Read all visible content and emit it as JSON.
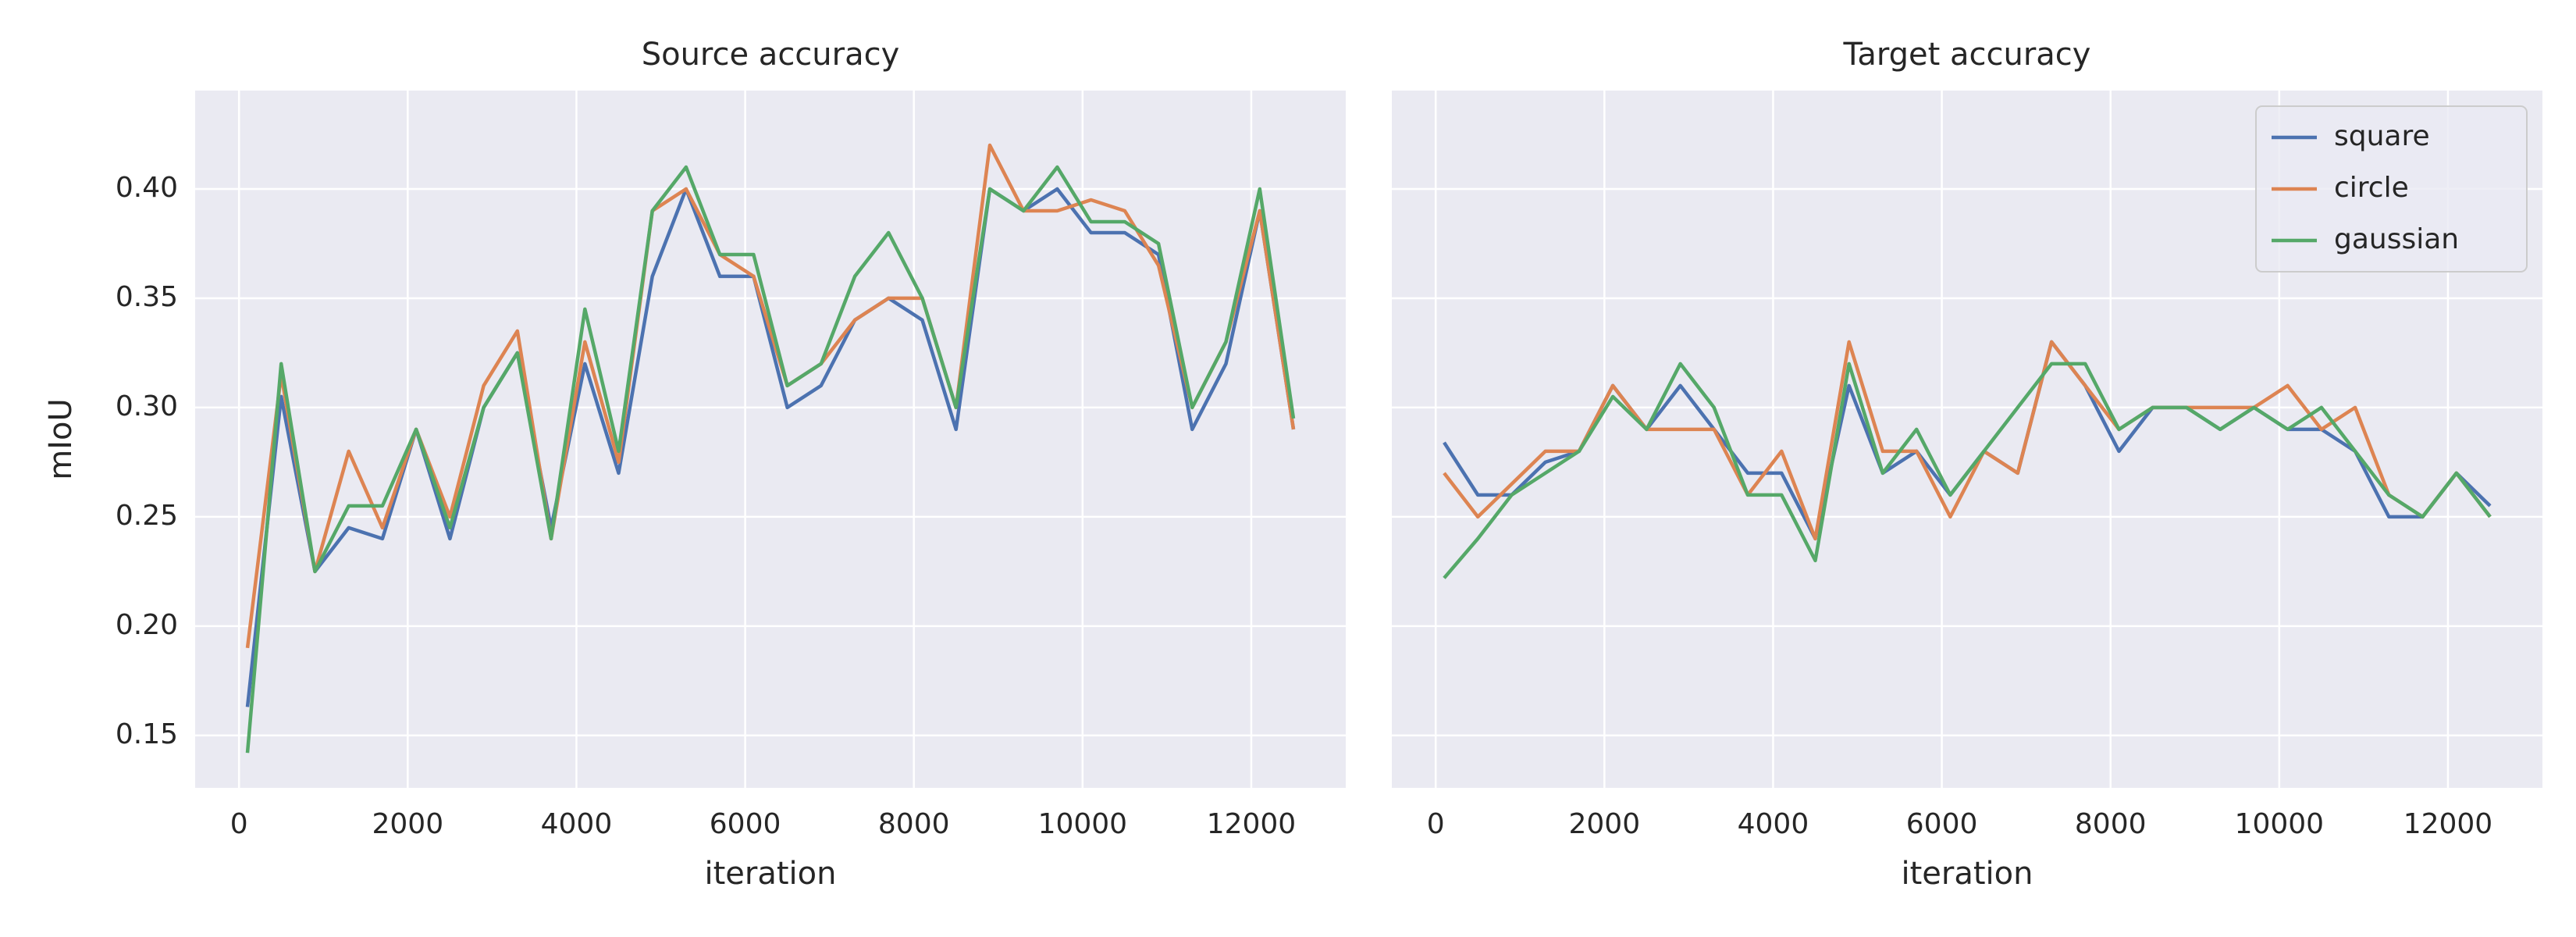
{
  "chart_data": [
    {
      "type": "line",
      "title": "Source accuracy",
      "xlabel": "iteration",
      "ylabel": "mIoU",
      "x": [
        100,
        500,
        900,
        1300,
        1700,
        2100,
        2500,
        2900,
        3300,
        3700,
        4100,
        4500,
        4900,
        5300,
        5700,
        6100,
        6500,
        6900,
        7300,
        7700,
        8100,
        8500,
        8900,
        9300,
        9700,
        10100,
        10500,
        10900,
        11300,
        11700,
        12100,
        12500
      ],
      "series": [
        {
          "name": "square",
          "color": "#4c72b0",
          "values": [
            0.163,
            0.305,
            0.225,
            0.245,
            0.24,
            0.29,
            0.24,
            0.3,
            0.325,
            0.245,
            0.32,
            0.27,
            0.36,
            0.4,
            0.36,
            0.36,
            0.3,
            0.31,
            0.34,
            0.35,
            0.34,
            0.29,
            0.4,
            0.39,
            0.4,
            0.38,
            0.38,
            0.37,
            0.29,
            0.32,
            0.39,
            0.29
          ]
        },
        {
          "name": "circle",
          "color": "#dd8452",
          "values": [
            0.19,
            0.315,
            0.225,
            0.28,
            0.245,
            0.29,
            0.25,
            0.31,
            0.335,
            0.24,
            0.33,
            0.275,
            0.39,
            0.4,
            0.37,
            0.36,
            0.31,
            0.32,
            0.34,
            0.35,
            0.35,
            0.3,
            0.42,
            0.39,
            0.39,
            0.395,
            0.39,
            0.365,
            0.3,
            0.33,
            0.39,
            0.29
          ]
        },
        {
          "name": "gaussian",
          "color": "#55a868",
          "values": [
            0.142,
            0.32,
            0.225,
            0.255,
            0.255,
            0.29,
            0.245,
            0.3,
            0.325,
            0.24,
            0.345,
            0.28,
            0.39,
            0.41,
            0.37,
            0.37,
            0.31,
            0.32,
            0.36,
            0.38,
            0.35,
            0.3,
            0.4,
            0.39,
            0.41,
            0.385,
            0.385,
            0.375,
            0.3,
            0.33,
            0.4,
            0.295
          ]
        }
      ],
      "xlim": [
        -520,
        13120
      ],
      "ylim": [
        0.126,
        0.445
      ],
      "xticks": [
        0,
        2000,
        4000,
        6000,
        8000,
        10000,
        12000
      ],
      "yticks": [
        {
          "value": 0.15,
          "label": "0.15"
        },
        {
          "value": 0.2,
          "label": "0.20"
        },
        {
          "value": 0.25,
          "label": "0.25"
        },
        {
          "value": 0.3,
          "label": "0.30"
        },
        {
          "value": 0.35,
          "label": "0.35"
        },
        {
          "value": 0.4,
          "label": "0.40"
        }
      ],
      "ytick_labels": true,
      "grid": true,
      "legend": false
    },
    {
      "type": "line",
      "title": "Target accuracy",
      "xlabel": "iteration",
      "x": [
        100,
        500,
        900,
        1300,
        1700,
        2100,
        2500,
        2900,
        3300,
        3700,
        4100,
        4500,
        4900,
        5300,
        5700,
        6100,
        6500,
        6900,
        7300,
        7700,
        8100,
        8500,
        8900,
        9300,
        9700,
        10100,
        10500,
        10900,
        11300,
        11700,
        12100,
        12500
      ],
      "series": [
        {
          "name": "square",
          "color": "#4c72b0",
          "values": [
            0.284,
            0.26,
            0.26,
            0.275,
            0.28,
            0.31,
            0.29,
            0.31,
            0.29,
            0.27,
            0.27,
            0.24,
            0.31,
            0.27,
            0.28,
            0.26,
            0.28,
            0.27,
            0.33,
            0.31,
            0.28,
            0.3,
            0.3,
            0.29,
            0.3,
            0.29,
            0.29,
            0.28,
            0.25,
            0.25,
            0.27,
            0.255
          ]
        },
        {
          "name": "circle",
          "color": "#dd8452",
          "values": [
            0.27,
            0.25,
            0.265,
            0.28,
            0.28,
            0.31,
            0.29,
            0.29,
            0.29,
            0.26,
            0.28,
            0.24,
            0.33,
            0.28,
            0.28,
            0.25,
            0.28,
            0.27,
            0.33,
            0.31,
            0.29,
            0.3,
            0.3,
            0.3,
            0.3,
            0.31,
            0.29,
            0.3,
            0.26,
            0.25,
            0.27,
            0.25
          ]
        },
        {
          "name": "gaussian",
          "color": "#55a868",
          "values": [
            0.222,
            0.24,
            0.26,
            0.27,
            0.28,
            0.305,
            0.29,
            0.32,
            0.3,
            0.26,
            0.26,
            0.23,
            0.32,
            0.27,
            0.29,
            0.26,
            0.28,
            0.3,
            0.32,
            0.32,
            0.29,
            0.3,
            0.3,
            0.29,
            0.3,
            0.29,
            0.3,
            0.28,
            0.26,
            0.25,
            0.27,
            0.25
          ]
        }
      ],
      "xlim": [
        -520,
        13120
      ],
      "ylim": [
        0.126,
        0.445
      ],
      "xticks": [
        0,
        2000,
        4000,
        6000,
        8000,
        10000,
        12000
      ],
      "yticks": [
        0.15,
        0.2,
        0.25,
        0.3,
        0.35,
        0.4
      ],
      "ytick_labels": false,
      "grid": true,
      "legend": "upper right"
    }
  ]
}
